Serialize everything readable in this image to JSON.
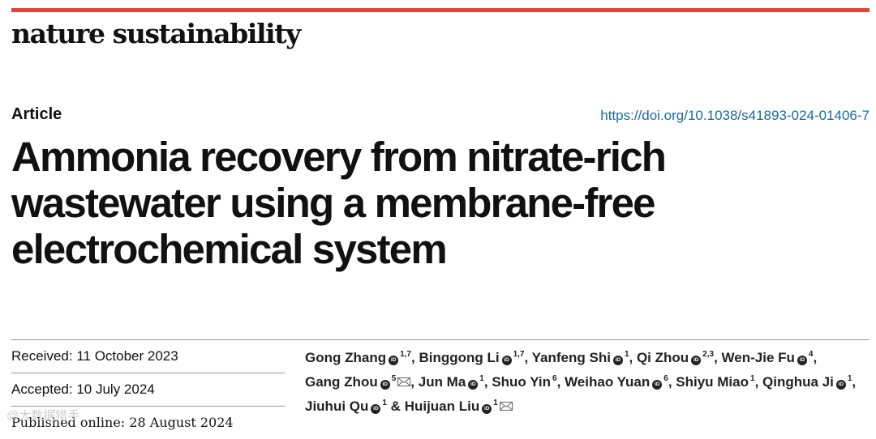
{
  "header": {
    "journal": "nature sustainability",
    "article_type": "Article",
    "doi": "https://doi.org/10.1038/s41893-024-01406-7"
  },
  "title_lines": [
    "Ammonia recovery from nitrate-rich",
    "wastewater using a membrane-free",
    "electrochemical system"
  ],
  "dates": {
    "received": "Received: 11 October 2023",
    "accepted": "Accepted: 10 July 2024",
    "published": "Published online: 28 August 2024"
  },
  "authors": [
    {
      "name": "Gong Zhang",
      "orcid": true,
      "aff": "1,7",
      "email": false
    },
    {
      "name": "Binggong Li",
      "orcid": true,
      "aff": "1,7",
      "email": false
    },
    {
      "name": "Yanfeng Shi",
      "orcid": true,
      "aff": "1",
      "email": false
    },
    {
      "name": "Qi Zhou",
      "orcid": true,
      "aff": "2,3",
      "email": false
    },
    {
      "name": "Wen-Jie Fu",
      "orcid": true,
      "aff": "4",
      "email": false
    },
    {
      "name": "Gang Zhou",
      "orcid": true,
      "aff": "5",
      "email": true
    },
    {
      "name": "Jun Ma",
      "orcid": true,
      "aff": "1",
      "email": false
    },
    {
      "name": "Shuo Yin",
      "orcid": false,
      "aff": "6",
      "email": false
    },
    {
      "name": "Weihao Yuan",
      "orcid": true,
      "aff": "6",
      "email": false
    },
    {
      "name": "Shiyu Miao",
      "orcid": false,
      "aff": "1",
      "email": false
    },
    {
      "name": "Qinghua Ji",
      "orcid": true,
      "aff": "1",
      "email": false
    },
    {
      "name": "Jiuhui Qu",
      "orcid": true,
      "aff": "1",
      "email": false
    },
    {
      "name": "Huijuan Liu",
      "orcid": true,
      "aff": "1",
      "email": true
    }
  ],
  "orcid_badge": "iD",
  "watermark": "@大数据猎手",
  "colors": {
    "accent_bar": "#e3473a",
    "doi_link": "#1a6a9e"
  }
}
